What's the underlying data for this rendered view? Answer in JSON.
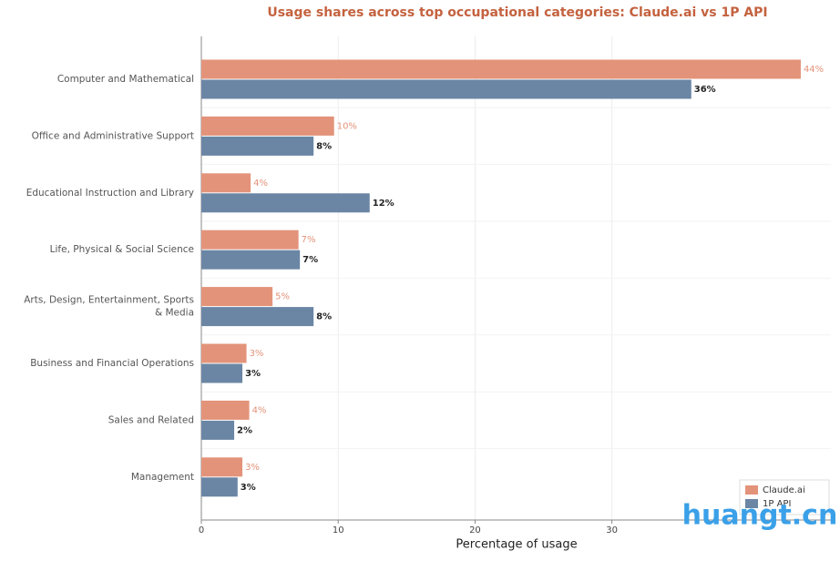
{
  "chart_data": {
    "type": "hbar",
    "title": "Usage shares across top occupational categories: Claude.ai vs 1P API",
    "x_label": "Percentage of usage",
    "categories": [
      "Computer and Mathematical",
      "Office and Administrative Support",
      "Educational Instruction and Library",
      "Life, Physical & Social Science",
      "Arts, Design, Entertainment, Sports & Media",
      "Business and Financial Operations",
      "Sales and Related",
      "Management"
    ],
    "series": [
      {
        "name": "Claude.ai",
        "color": "#e3937a",
        "values": [
          43.8,
          9.7,
          3.6,
          7.1,
          5.2,
          3.3,
          3.5,
          3.0
        ],
        "value_labels": [
          "44%",
          "10%",
          "4%",
          "7%",
          "5%",
          "3%",
          "4%",
          "3%"
        ]
      },
      {
        "name": "1P API",
        "color": "#6b86a5",
        "values": [
          35.8,
          8.2,
          12.3,
          7.2,
          8.2,
          3.0,
          2.4,
          2.65
        ],
        "value_labels": [
          "36%",
          "8%",
          "12%",
          "7%",
          "8%",
          "3%",
          "2%",
          "3%"
        ]
      }
    ],
    "xlim": [
      0,
      46
    ],
    "xticks": [
      0,
      10,
      20,
      30
    ],
    "grid": true,
    "legend": "lower right",
    "watermark": "huangt.cn"
  }
}
